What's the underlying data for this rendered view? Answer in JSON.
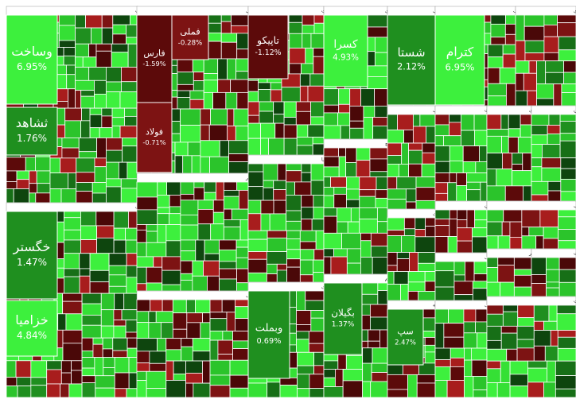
{
  "chart_data": {
    "type": "treemap",
    "sectors": [
      {
        "name": "[-] انبوه سازی، املاک و مستغلات",
        "tiles": [
          {
            "name": "وساخت",
            "value": 6.95,
            "value_label": "6.95%"
          },
          {
            "name": "ثشاهد",
            "value": 1.76,
            "value_label": "1.76%"
          }
        ]
      },
      {
        "name": "[-] خودرو و ساخت قطعات",
        "tiles": [
          {
            "name": "خگستر",
            "value": 1.47,
            "value_label": "1.47%"
          },
          {
            "name": "خزامیا",
            "value": 4.84,
            "value_label": "4.84%"
          }
        ]
      },
      {
        "name": "[-] فلزات اساسی",
        "tiles": [
          {
            "name": "فارس",
            "value": -1.59,
            "value_label": "-1.59%"
          },
          {
            "name": "فملی",
            "value": -0.28,
            "value_label": "-0.28%"
          },
          {
            "name": "فولاد",
            "value": -0.71,
            "value_label": "-0.71%"
          }
        ]
      },
      {
        "name": "[-] محصولات غذایی و آشامیدنی به جز قند و شکر",
        "tiles": []
      },
      {
        "name": "[-] محصولات شیمیایی",
        "tiles": []
      },
      {
        "name": "[-] حمل ونقل، انبارداری و ارتباطات",
        "tiles": [
          {
            "name": "تاپیکو",
            "value": -1.12,
            "value_label": "-1.12%"
          }
        ]
      },
      {
        "name": "[-] سرمایه گذاریها",
        "tiles": []
      },
      {
        "name": "[-] بانکها و موسسات اعتباری",
        "tiles": [
          {
            "name": "وبملت",
            "value": 0.69,
            "value_label": "0.69%"
          }
        ]
      },
      {
        "name": "[-] سایر محصولات کانی غیرفلزی",
        "tiles": [
          {
            "name": "کسرا",
            "value": 4.93,
            "value_label": "4.93%"
          }
        ]
      },
      {
        "name": "[-] سیمان، آهک و گچ",
        "tiles": []
      },
      {
        "name": "[-] عرضه برق، گاز، بخار و آب گرم",
        "tiles": [
          {
            "name": "بگیلان",
            "value": 1.37,
            "value_label": "1.37%"
          }
        ]
      },
      {
        "name": "[-] شرکتهای چند رشته ای صنعتی",
        "tiles": [
          {
            "name": "شستا",
            "value": 2.12,
            "value_label": "2.12%"
          }
        ]
      },
      {
        "name": "[-] مواد و محصولات دارویی",
        "tiles": []
      },
      {
        "name": "[-] استخراج کانه های غیر فلزی",
        "tiles": []
      },
      {
        "name": "[-] رایانه و فعالیت‌های وابسته",
        "tiles": [
          {
            "name": "سپ",
            "value": 2.47,
            "value_label": "2.47%"
          }
        ]
      },
      {
        "name": "[-] کاشی و سرامیک",
        "tiles": [
          {
            "name": "کترام",
            "value": 6.95,
            "value_label": "6.95%"
          }
        ]
      },
      {
        "name": "[-] استخراج کانه های فلزی",
        "tiles": []
      },
      {
        "name": "[-] ماشین آلات و تجهیزات",
        "tiles": []
      },
      {
        "name": "[-] ساخت محصولات فلزی",
        "tiles": []
      },
      {
        "name": "[-] استخراج سایر معادن",
        "tiles": []
      },
      {
        "name": "[-] هتل و رستوران",
        "tiles": []
      },
      {
        "name": "[-] سایر واسطه گریهای مالی",
        "tiles": []
      },
      {
        "name": "[-] بیمه و صندوق بازنشستگی",
        "tiles": []
      },
      {
        "name": "[-] قند و شکر",
        "tiles": []
      },
      {
        "name": "[-] زراعت",
        "tiles": []
      },
      {
        "name": "[-] فعالیتهای کمکی",
        "tiles": []
      },
      {
        "name": "[-] مخابرات",
        "tiles": []
      }
    ]
  }
}
